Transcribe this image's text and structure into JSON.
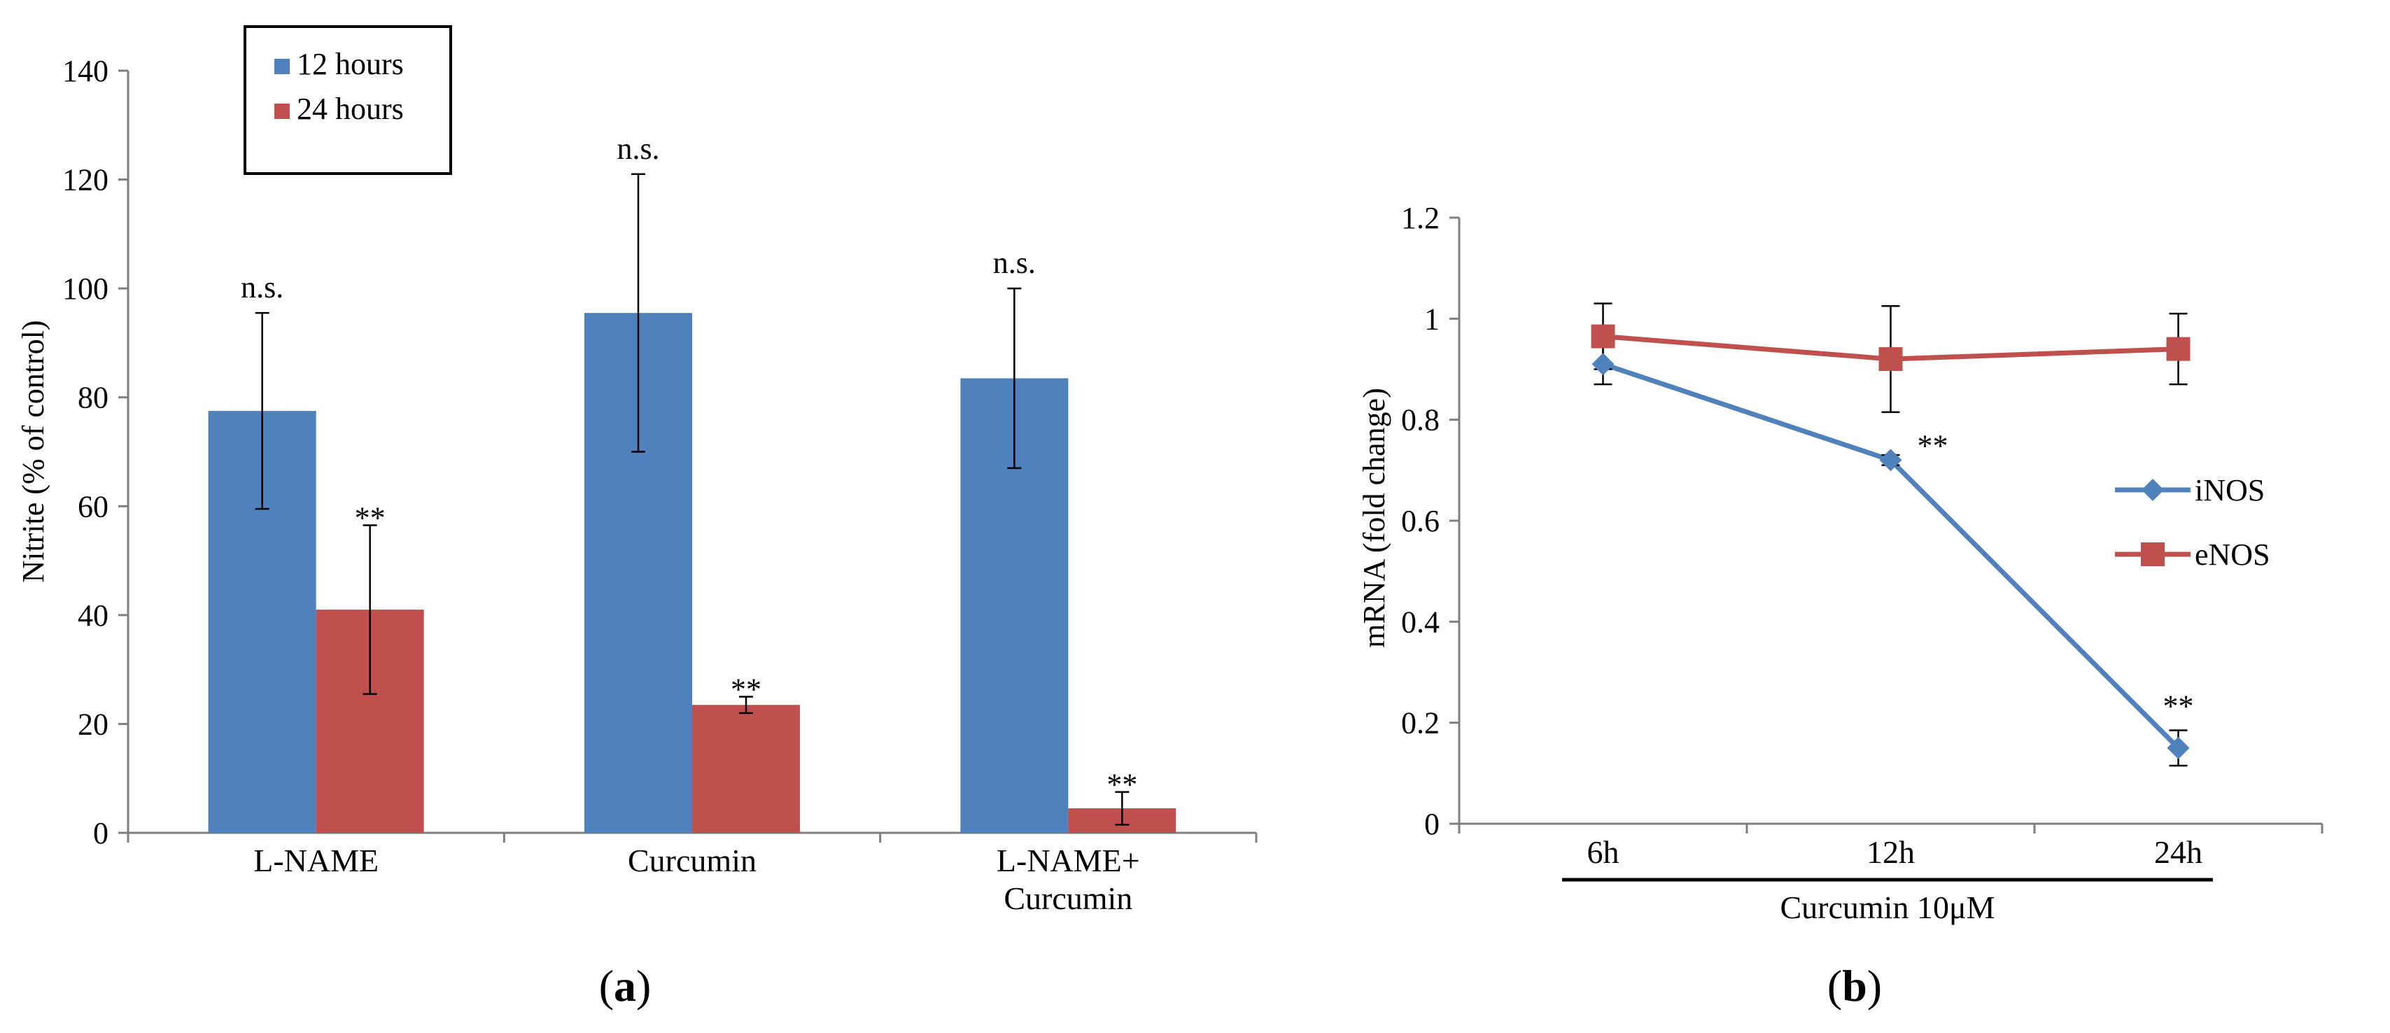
{
  "figure": {
    "panel_a_label": "a",
    "panel_b_label": "b"
  },
  "chart_data": [
    {
      "type": "bar",
      "panel": "a",
      "ylabel": "Nitrite (% of control)",
      "xlabel": "",
      "ylim": [
        0,
        140
      ],
      "yticks": [
        0,
        20,
        40,
        60,
        80,
        100,
        120,
        140
      ],
      "category_lines": [
        [
          "L-NAME"
        ],
        [
          "Curcumin"
        ],
        [
          "L-NAME+",
          "Curcumin"
        ]
      ],
      "legend_position": "top-left",
      "series": [
        {
          "name": "12 hours",
          "color": "#4F81BD",
          "values": [
            77.5,
            95.5,
            83.5
          ],
          "errors": [
            18,
            25.5,
            16.5
          ],
          "annotations": [
            "n.s.",
            "n.s.",
            "n.s."
          ]
        },
        {
          "name": "24 hours",
          "color": "#C0504D",
          "values": [
            41,
            23.5,
            4.5
          ],
          "errors": [
            15.5,
            1.5,
            3
          ],
          "annotations": [
            "**",
            "**",
            "**"
          ]
        }
      ]
    },
    {
      "type": "line",
      "panel": "b",
      "ylabel": "mRNA (fold change)",
      "xlabel": "Curcumin 10μM",
      "categories": [
        "6h",
        "12h",
        "24h"
      ],
      "ylim": [
        0,
        1.2
      ],
      "yticks": [
        "0",
        "0.2",
        "0.4",
        "0.6",
        "0.8",
        "1",
        "1.2"
      ],
      "legend_position": "right",
      "series": [
        {
          "name": "iNOS",
          "color": "#4F81BD",
          "marker": "diamond",
          "values": [
            0.91,
            0.72,
            0.15
          ],
          "errors": [
            0.04,
            0.01,
            0.035
          ],
          "annotations": [
            "",
            "**",
            "**"
          ]
        },
        {
          "name": "eNOS",
          "color": "#C0504D",
          "marker": "square",
          "values": [
            0.965,
            0.92,
            0.94
          ],
          "errors": [
            0.065,
            0.105,
            0.07
          ],
          "annotations": [
            "",
            "",
            ""
          ]
        }
      ]
    }
  ]
}
